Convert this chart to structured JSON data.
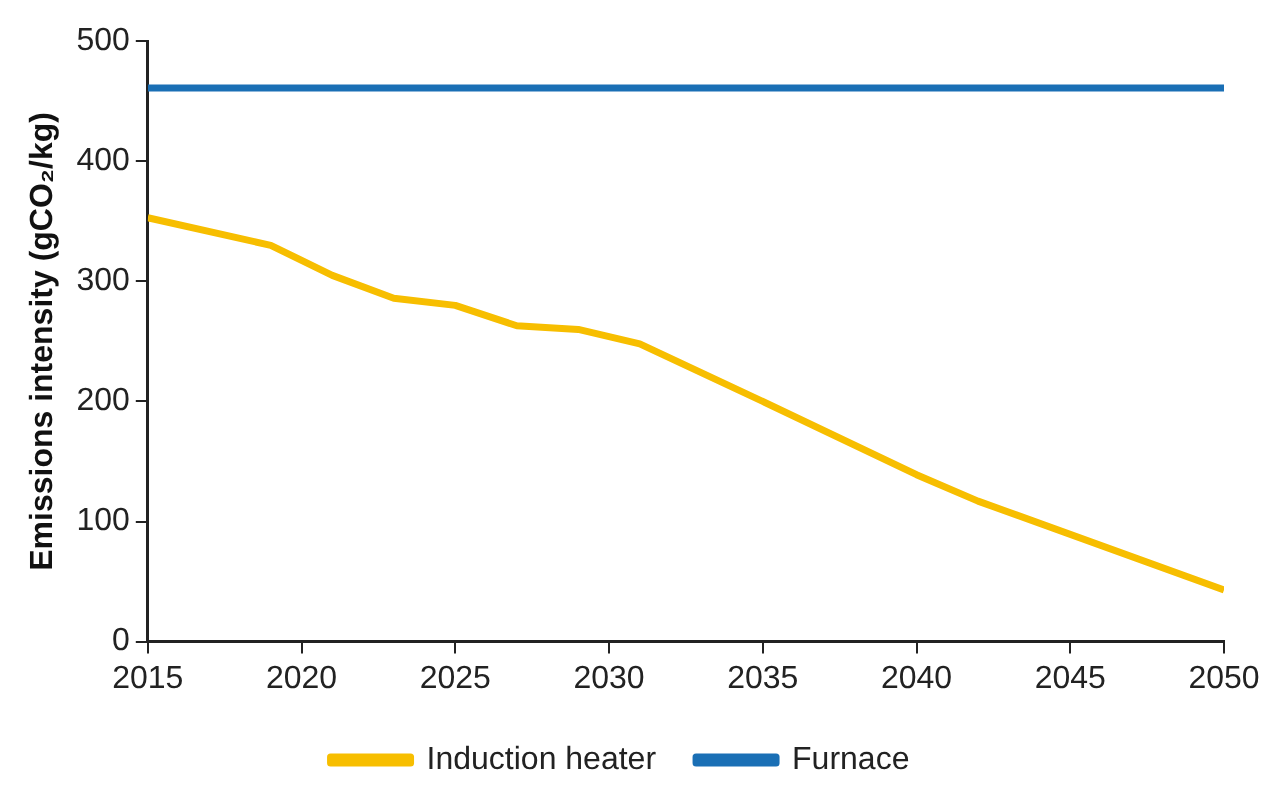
{
  "chart_data": {
    "type": "line",
    "ylabel": "Emissions intensity (gCO₂/kg)",
    "x": [
      2015,
      2019,
      2021,
      2023,
      2025,
      2027,
      2029,
      2031,
      2035,
      2040,
      2042,
      2050
    ],
    "series": [
      {
        "name": "Induction heater",
        "color": "#f7be00",
        "values": [
          353,
          330,
          305,
          286,
          280,
          263,
          260,
          248,
          200,
          139,
          117,
          43
        ]
      },
      {
        "name": "Furnace",
        "color": "#1a6fb5",
        "x": [
          2015,
          2050
        ],
        "values": [
          461,
          461
        ]
      }
    ],
    "xlim": [
      2015,
      2050
    ],
    "xticks": [
      2015,
      2020,
      2025,
      2030,
      2035,
      2040,
      2045,
      2050
    ],
    "ylim": [
      0,
      500
    ],
    "yticks": [
      0,
      100,
      200,
      300,
      400,
      500
    ],
    "grid": false,
    "legend": "bottom",
    "marker": "none",
    "line_style": "solid"
  }
}
